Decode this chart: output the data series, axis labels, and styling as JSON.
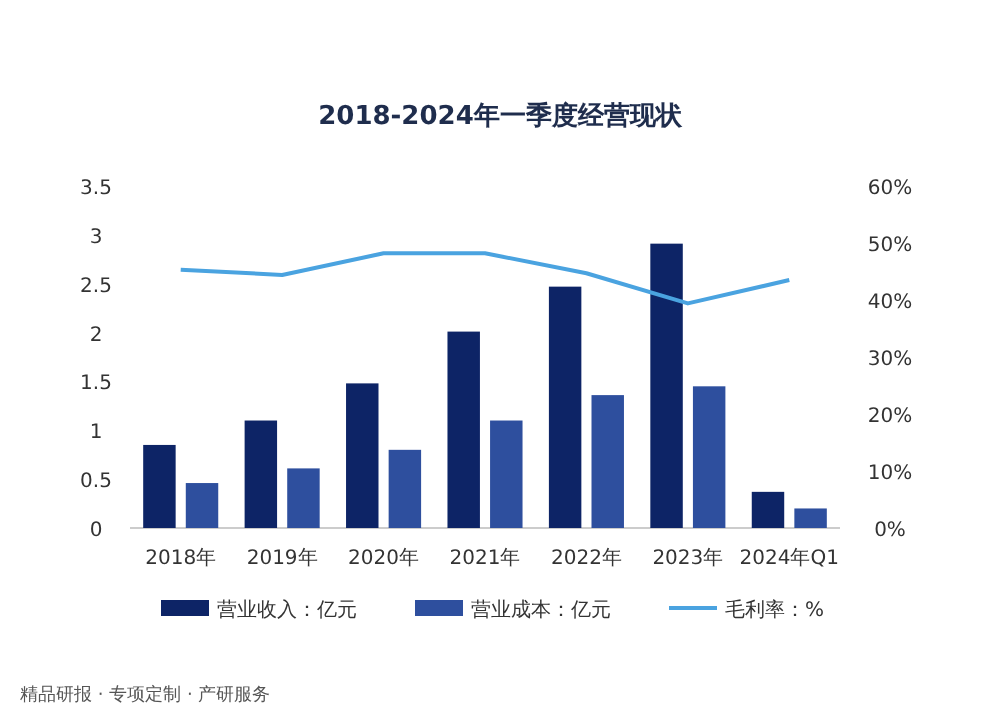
{
  "chart_data": {
    "type": "bar",
    "title": "2018-2024年一季度经营现状",
    "categories": [
      "2018年",
      "2019年",
      "2020年",
      "2021年",
      "2022年",
      "2023年",
      "2024年Q1"
    ],
    "series": [
      {
        "name": "营业收入：亿元",
        "color": "#0d2466",
        "values": [
          0.85,
          1.1,
          1.48,
          2.01,
          2.47,
          2.91,
          0.37
        ]
      },
      {
        "name": "营业成本：亿元",
        "color": "#2e4f9e",
        "values": [
          0.46,
          0.61,
          0.8,
          1.1,
          1.36,
          1.45,
          0.2
        ]
      },
      {
        "name": "毛利率：%",
        "type": "line",
        "axis": "y2",
        "color": "#4aa3e0",
        "values": [
          45.3,
          44.4,
          48.2,
          48.2,
          44.7,
          39.4,
          43.5
        ]
      }
    ],
    "ylim": [
      0,
      3.5
    ],
    "yticks": [
      0,
      0.5,
      1,
      1.5,
      2,
      2.5,
      3,
      3.5
    ],
    "y2lim": [
      0,
      60
    ],
    "y2ticks": [
      {
        "value": 0,
        "label": "0%"
      },
      {
        "value": 10,
        "label": "10%"
      },
      {
        "value": 20,
        "label": "20%"
      },
      {
        "value": 30,
        "label": "30%"
      },
      {
        "value": 40,
        "label": "40%"
      },
      {
        "value": 50,
        "label": "50%"
      },
      {
        "value": 60,
        "label": "60%"
      }
    ],
    "legend": "bottom",
    "grid": false,
    "marker": "none",
    "line_style": "solid",
    "annotations": [
      "精品研报 · 专项定制 · 产研服务"
    ]
  }
}
